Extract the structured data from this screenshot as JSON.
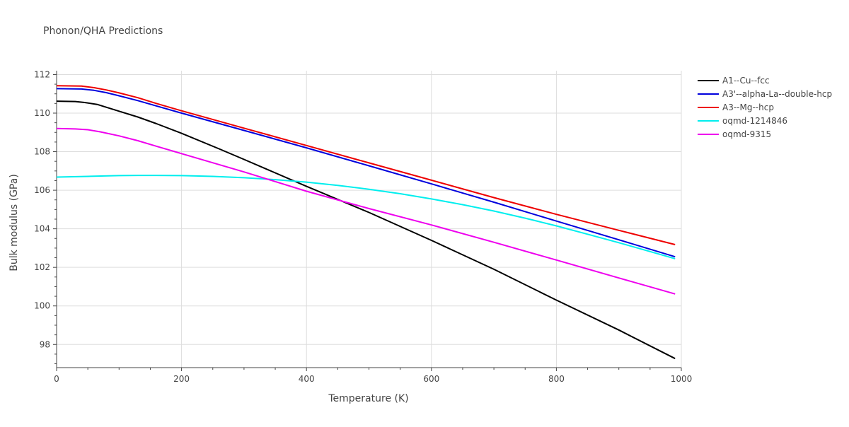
{
  "chart_data": {
    "type": "line",
    "title": "Phonon/QHA Predictions",
    "xlabel": "Temperature (K)",
    "ylabel": "Bulk modulus (GPa)",
    "xlim": [
      0,
      1000
    ],
    "ylim": [
      96.8,
      112.2
    ],
    "xticks": [
      0,
      200,
      400,
      600,
      800,
      1000
    ],
    "yticks": [
      98,
      100,
      102,
      104,
      106,
      108,
      110,
      112
    ],
    "grid": true,
    "legend_position": "top-right",
    "series": [
      {
        "name": "A1--Cu--fcc",
        "color": "#000000",
        "x": [
          0,
          30,
          45,
          65,
          80,
          100,
          130,
          160,
          200,
          260,
          300,
          400,
          500,
          600,
          700,
          800,
          900,
          990
        ],
        "y": [
          110.62,
          110.6,
          110.55,
          110.45,
          110.3,
          110.1,
          109.8,
          109.45,
          108.95,
          108.15,
          107.6,
          106.2,
          104.85,
          103.4,
          101.9,
          100.3,
          98.75,
          97.27
        ]
      },
      {
        "name": "A3'--alpha-La--double-hcp",
        "color": "#0000dd",
        "x": [
          0,
          40,
          60,
          80,
          100,
          130,
          160,
          200,
          300,
          400,
          500,
          600,
          700,
          800,
          900,
          990
        ],
        "y": [
          111.27,
          111.25,
          111.18,
          111.06,
          110.9,
          110.65,
          110.37,
          110.0,
          109.1,
          108.2,
          107.27,
          106.33,
          105.38,
          104.4,
          103.43,
          102.55
        ]
      },
      {
        "name": "A3--Mg--hcp",
        "color": "#ee0000",
        "x": [
          0,
          40,
          60,
          80,
          100,
          130,
          160,
          200,
          300,
          400,
          500,
          600,
          700,
          800,
          900,
          990
        ],
        "y": [
          111.42,
          111.4,
          111.32,
          111.2,
          111.05,
          110.8,
          110.5,
          110.12,
          109.22,
          108.32,
          107.42,
          106.52,
          105.62,
          104.75,
          103.92,
          103.18
        ]
      },
      {
        "name": "oqmd-1214846",
        "color": "#00eeee",
        "x": [
          0,
          50,
          100,
          130,
          160,
          200,
          250,
          300,
          350,
          400,
          450,
          500,
          550,
          600,
          650,
          700,
          750,
          800,
          850,
          900,
          950,
          990
        ],
        "y": [
          106.68,
          106.72,
          106.76,
          106.77,
          106.77,
          106.76,
          106.72,
          106.65,
          106.55,
          106.42,
          106.25,
          106.05,
          105.82,
          105.55,
          105.25,
          104.92,
          104.55,
          104.15,
          103.72,
          103.28,
          102.82,
          102.45
        ]
      },
      {
        "name": "oqmd-9315",
        "color": "#ee00ee",
        "x": [
          0,
          30,
          50,
          70,
          100,
          130,
          160,
          200,
          300,
          400,
          500,
          600,
          700,
          800,
          900,
          990
        ],
        "y": [
          109.2,
          109.18,
          109.14,
          109.03,
          108.82,
          108.57,
          108.28,
          107.9,
          106.95,
          105.95,
          105.05,
          104.2,
          103.3,
          102.38,
          101.45,
          100.62
        ]
      }
    ]
  }
}
